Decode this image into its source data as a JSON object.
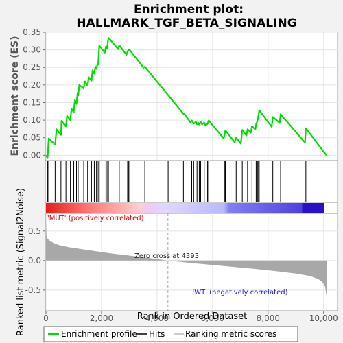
{
  "title_line1": "Enrichment plot:",
  "title_line2": "HALLMARK_TGF_BETA_SIGNALING",
  "colors": {
    "es_line": "#00dd00",
    "hit": "#000000",
    "metric": "#a8a8a8",
    "pos_label": "#dd0000",
    "neg_label": "#2020cc",
    "zero_line": "#a8a8a8"
  },
  "chart_data": [
    {
      "type": "line",
      "name": "enrichment_plot",
      "ylabel": "Enrichment score (ES)",
      "xlim": [
        0,
        10500
      ],
      "ylim": [
        -0.015,
        0.35
      ],
      "yticks": [
        0.0,
        0.05,
        0.1,
        0.15,
        0.2,
        0.25,
        0.3,
        0.35
      ],
      "ytick_labels": [
        "0.00",
        "0.05",
        "0.10",
        "0.15",
        "0.20",
        "0.25",
        "0.30",
        "0.35"
      ],
      "grid": true,
      "series": [
        {
          "name": "Enrichment profile",
          "x": [
            0,
            60,
            100,
            330,
            380,
            540,
            560,
            720,
            760,
            880,
            920,
            1000,
            1040,
            1100,
            1140,
            1160,
            1200,
            1360,
            1400,
            1500,
            1540,
            1640,
            1680,
            1740,
            1780,
            1820,
            1860,
            1880,
            1920,
            2120,
            2160,
            2200,
            2250,
            2280,
            2600,
            2640,
            2900,
            2940,
            2980,
            3020,
            3520,
            3560,
            4950,
            5000,
            5200,
            5250,
            5320,
            5400,
            5440,
            5480,
            5520,
            5570,
            5620,
            5700,
            5750,
            5820,
            5860,
            6400,
            6430,
            6460,
            6800,
            6850,
            7020,
            7070,
            7220,
            7260,
            7380,
            7420,
            7540,
            7570,
            7610,
            7640,
            7680,
            8130,
            8170,
            8420,
            8450,
            9330,
            9360,
            10100
          ],
          "y": [
            0.0,
            -0.008,
            0.048,
            0.03,
            0.074,
            0.058,
            0.098,
            0.082,
            0.112,
            0.1,
            0.133,
            0.122,
            0.157,
            0.146,
            0.178,
            0.17,
            0.2,
            0.19,
            0.21,
            0.198,
            0.222,
            0.212,
            0.242,
            0.232,
            0.252,
            0.246,
            0.262,
            0.258,
            0.312,
            0.292,
            0.31,
            0.304,
            0.334,
            0.332,
            0.302,
            0.313,
            0.286,
            0.296,
            0.3,
            0.299,
            0.249,
            0.252,
            0.118,
            0.116,
            0.094,
            0.099,
            0.09,
            0.095,
            0.088,
            0.093,
            0.087,
            0.095,
            0.088,
            0.093,
            0.085,
            0.09,
            0.099,
            0.048,
            0.058,
            0.071,
            0.037,
            0.05,
            0.033,
            0.072,
            0.056,
            0.074,
            0.064,
            0.083,
            0.073,
            0.089,
            0.096,
            0.106,
            0.128,
            0.081,
            0.109,
            0.092,
            0.117,
            0.036,
            0.077,
            0.0
          ]
        }
      ]
    },
    {
      "type": "scatter",
      "name": "hits",
      "series": [
        {
          "name": "Hits",
          "x": [
            60,
            100,
            330,
            540,
            720,
            880,
            1000,
            1100,
            1160,
            1360,
            1500,
            1640,
            1740,
            1820,
            1880,
            1920,
            2160,
            2200,
            2250,
            2640,
            2940,
            2980,
            3020,
            3560,
            4400,
            4950,
            5250,
            5320,
            5440,
            5520,
            5570,
            5700,
            5820,
            5860,
            6430,
            6460,
            6850,
            7070,
            7260,
            7420,
            7570,
            7610,
            7640,
            7680,
            8170,
            8450,
            9360
          ]
        }
      ]
    },
    {
      "type": "area",
      "name": "ranked_list_metric",
      "xlabel": "Rank in Ordered Dataset",
      "ylabel": "Ranked list metric (Signal2Noise)",
      "xlim": [
        0,
        10500
      ],
      "ylim": [
        -0.85,
        0.8
      ],
      "yticks": [
        -0.5,
        0.0,
        0.5
      ],
      "ytick_labels": [
        "-0.5",
        "0.0",
        "0.5"
      ],
      "xticks": [
        0,
        2000,
        4000,
        6000,
        8000,
        10000
      ],
      "xtick_labels": [
        "0",
        "2,000",
        "4,000",
        "6,000",
        "8,000",
        "10,000"
      ],
      "grid": true,
      "series": [
        {
          "name": "Ranking metric scores",
          "x": [
            0,
            20,
            60,
            150,
            300,
            500,
            800,
            1200,
            1700,
            2300,
            3000,
            3700,
            4393,
            5200,
            6000,
            6800,
            7600,
            8400,
            9000,
            9500,
            9800,
            9950,
            10050,
            10100,
            10120
          ],
          "y": [
            0.72,
            0.42,
            0.37,
            0.33,
            0.29,
            0.26,
            0.23,
            0.2,
            0.165,
            0.125,
            0.085,
            0.045,
            0.0,
            -0.04,
            -0.075,
            -0.11,
            -0.145,
            -0.185,
            -0.22,
            -0.26,
            -0.31,
            -0.36,
            -0.44,
            -0.58,
            -0.8
          ]
        }
      ],
      "zero_cross": 4393
    }
  ],
  "annotations": {
    "pos_label": "'MUT' (positively correlated)",
    "neg_label": "'WT' (negatively correlated)",
    "zero_cross": "Zero cross at 4393"
  },
  "legend": {
    "placement": "bottom",
    "items": [
      {
        "label": "Enrichment profile",
        "color": "#00dd00"
      },
      {
        "label": "Hits",
        "color": "#000000"
      },
      {
        "label": "Ranking metric scores",
        "color": "#bbbbbb"
      }
    ]
  }
}
